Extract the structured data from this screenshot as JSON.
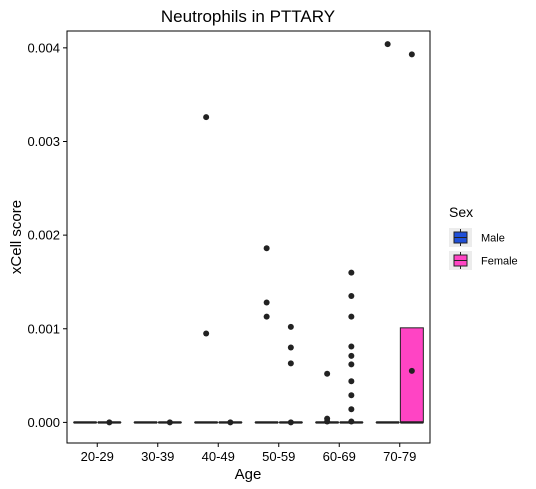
{
  "chart_data": {
    "type": "box",
    "title": "Neutrophils in PTTARY",
    "xlabel": "Age",
    "ylabel": "xCell score",
    "categories": [
      "20-29",
      "30-39",
      "40-49",
      "50-59",
      "60-69",
      "70-79"
    ],
    "y_ticks": [
      {
        "value": 0,
        "label": "0.000"
      },
      {
        "value": 0.001,
        "label": "0.001"
      },
      {
        "value": 0.002,
        "label": "0.002"
      },
      {
        "value": 0.003,
        "label": "0.003"
      },
      {
        "value": 0.004,
        "label": "0.004"
      }
    ],
    "ylim": [
      -0.00022,
      0.00418
    ],
    "grid": false,
    "legend": {
      "title": "Sex",
      "position": "right",
      "entries": [
        {
          "name": "Male",
          "color": "#1f4fd8"
        },
        {
          "name": "Female",
          "color": "#ff44c4"
        }
      ]
    },
    "series": [
      {
        "name": "Male",
        "color": "#1f4fd8",
        "boxes": [
          {
            "category": "20-29",
            "q1": 0,
            "median": 0,
            "q3": 0,
            "whisker_low": 0,
            "whisker_high": 0,
            "outliers": []
          },
          {
            "category": "30-39",
            "q1": 0,
            "median": 0,
            "q3": 0,
            "whisker_low": 0,
            "whisker_high": 0,
            "outliers": []
          },
          {
            "category": "40-49",
            "q1": 0,
            "median": 0,
            "q3": 0,
            "whisker_low": 0,
            "whisker_high": 0,
            "outliers": [
              0.00326,
              0.00095
            ]
          },
          {
            "category": "50-59",
            "q1": 0,
            "median": 0,
            "q3": 0,
            "whisker_low": 0,
            "whisker_high": 0,
            "outliers": [
              0.00186,
              0.00128,
              0.00113
            ]
          },
          {
            "category": "60-69",
            "q1": 0,
            "median": 0,
            "q3": 0,
            "whisker_low": 0,
            "whisker_high": 0,
            "outliers": [
              0.00052,
              4e-05,
              1e-05
            ]
          },
          {
            "category": "70-79",
            "q1": 0,
            "median": 0,
            "q3": 0,
            "whisker_low": 0,
            "whisker_high": 0,
            "outliers": [
              0.00404
            ]
          }
        ]
      },
      {
        "name": "Female",
        "color": "#ff44c4",
        "boxes": [
          {
            "category": "20-29",
            "q1": 0,
            "median": 0,
            "q3": 0,
            "whisker_low": 0,
            "whisker_high": 0,
            "outliers": [
              0
            ]
          },
          {
            "category": "30-39",
            "q1": 0,
            "median": 0,
            "q3": 0,
            "whisker_low": 0,
            "whisker_high": 0,
            "outliers": [
              0
            ]
          },
          {
            "category": "40-49",
            "q1": 0,
            "median": 0,
            "q3": 0,
            "whisker_low": 0,
            "whisker_high": 0,
            "outliers": [
              0
            ]
          },
          {
            "category": "50-59",
            "q1": 0,
            "median": 0,
            "q3": 0,
            "whisker_low": 0,
            "whisker_high": 0,
            "outliers": [
              0.00102,
              0.0008,
              0.00063,
              0
            ]
          },
          {
            "category": "60-69",
            "q1": 0,
            "median": 0,
            "q3": 0,
            "whisker_low": 0,
            "whisker_high": 0,
            "outliers": [
              0.0016,
              0.00135,
              0.00113,
              0.00081,
              0.00071,
              0.00062,
              0.00044,
              0.00029,
              0.00014,
              1e-05
            ]
          },
          {
            "category": "70-79",
            "q1": 0,
            "median": 0,
            "q3": 0.00101,
            "whisker_low": 0,
            "whisker_high": 0.00101,
            "outliers": [
              0.00393,
              0.00055
            ]
          }
        ]
      }
    ]
  }
}
